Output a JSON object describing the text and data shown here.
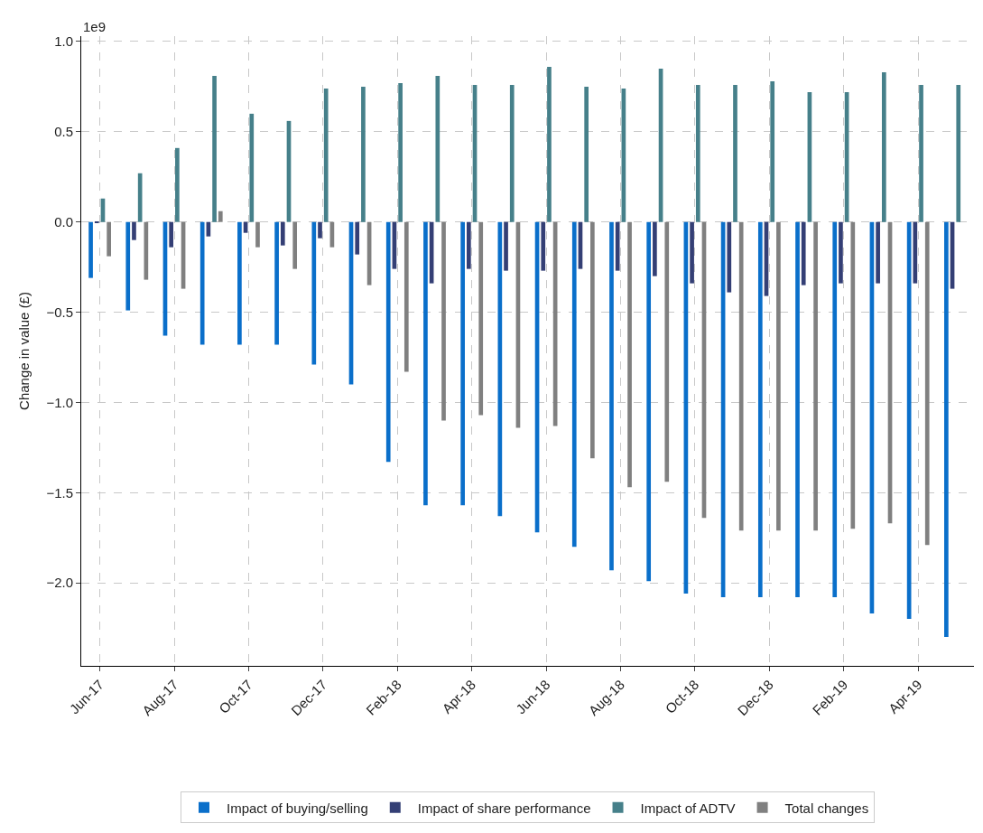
{
  "chart_data": {
    "type": "bar",
    "ylabel": "Change in value (£)",
    "annotations": [
      "1e9"
    ],
    "categories": [
      "Jun-17",
      null,
      "Aug-17",
      null,
      "Oct-17",
      null,
      "Dec-17",
      null,
      "Feb-18",
      null,
      "Apr-18",
      null,
      "Jun-18",
      null,
      "Aug-18",
      null,
      "Oct-18",
      null,
      "Dec-18",
      null,
      "Feb-19",
      null,
      "Apr-19",
      null
    ],
    "series": [
      {
        "name": "Impact of buying/selling",
        "color": "#0a6fca",
        "values": [
          -0.31,
          -0.49,
          -0.63,
          -0.68,
          -0.68,
          -0.68,
          -0.79,
          -0.9,
          -1.33,
          -1.57,
          -1.57,
          -1.63,
          -1.72,
          -1.8,
          -1.93,
          -1.99,
          -2.06,
          -2.08,
          -2.08,
          -2.08,
          -2.08,
          -2.17,
          -2.2,
          -2.3
        ]
      },
      {
        "name": "Impact of share performance",
        "color": "#343f75",
        "values": [
          -0.005,
          -0.1,
          -0.14,
          -0.08,
          -0.06,
          -0.13,
          -0.09,
          -0.18,
          -0.26,
          -0.34,
          -0.26,
          -0.27,
          -0.27,
          -0.26,
          -0.27,
          -0.3,
          -0.34,
          -0.39,
          -0.41,
          -0.35,
          -0.34,
          -0.34,
          -0.34,
          -0.37
        ]
      },
      {
        "name": "Impact of ADTV",
        "color": "#46808a",
        "values": [
          0.13,
          0.27,
          0.41,
          0.81,
          0.6,
          0.56,
          0.74,
          0.75,
          0.77,
          0.81,
          0.76,
          0.76,
          0.86,
          0.75,
          0.74,
          0.85,
          0.76,
          0.76,
          0.78,
          0.72,
          0.72,
          0.83,
          0.76,
          0.76
        ]
      },
      {
        "name": "Total changes",
        "color": "#808080",
        "values": [
          -0.19,
          -0.32,
          -0.37,
          0.06,
          -0.14,
          -0.26,
          -0.14,
          -0.35,
          -0.83,
          -1.1,
          -1.07,
          -1.14,
          -1.13,
          -1.31,
          -1.47,
          -1.44,
          -1.64,
          -1.71,
          -1.71,
          -1.71,
          -1.7,
          -1.67,
          -1.79,
          null
        ]
      }
    ],
    "ylim": [
      -2.46,
      1.03
    ],
    "yticks": [
      {
        "value": -2.0,
        "label": "−2.0"
      },
      {
        "value": -1.5,
        "label": "−1.5"
      },
      {
        "value": -1.0,
        "label": "−1.0"
      },
      {
        "value": -0.5,
        "label": "−0.5"
      },
      {
        "value": 0.0,
        "label": "0.0"
      },
      {
        "value": 0.5,
        "label": "0.5"
      },
      {
        "value": 1.0,
        "label": "1.0"
      }
    ],
    "grid": true,
    "legend": "bottom"
  }
}
